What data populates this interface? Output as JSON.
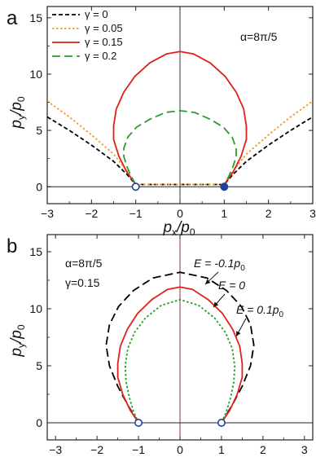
{
  "chart_data": [
    {
      "panel_label": "a",
      "type": "line",
      "xlabel": "p_x/p_0",
      "ylabel": "p_y/p_0",
      "xlim": [
        -3,
        3
      ],
      "ylim": [
        -1.5,
        16
      ],
      "xticks": [
        "-3",
        "-2",
        "-1",
        "0",
        "1",
        "2",
        "3"
      ],
      "yticks": [
        "0",
        "5",
        "10",
        "15"
      ],
      "grid": false,
      "legend_position": "top-left",
      "annotation": "α=8π/5",
      "series": [
        {
          "name": "γ = 0",
          "color": "#000000",
          "dash": "short-dash",
          "x": [
            -3.0,
            -2.5,
            -2.0,
            -1.5,
            -1.2,
            -1.0,
            1.0,
            1.2,
            1.5,
            2.0,
            2.5,
            3.0
          ],
          "y": [
            6.2,
            5.0,
            3.7,
            2.25,
            1.1,
            0.2,
            0.2,
            1.1,
            2.25,
            3.7,
            5.0,
            6.2
          ]
        },
        {
          "name": "γ = 0.05",
          "color": "#f39c2a",
          "dash": "dotted",
          "x": [
            -3.0,
            -2.5,
            -2.0,
            -1.5,
            -1.2,
            -1.0,
            1.0,
            1.2,
            1.5,
            2.0,
            2.5,
            3.0
          ],
          "y": [
            7.6,
            6.2,
            4.6,
            2.9,
            1.4,
            0.2,
            0.2,
            1.4,
            2.9,
            4.6,
            6.2,
            7.6
          ]
        },
        {
          "name": "γ = 0.15",
          "color": "#e0201b",
          "dash": "solid",
          "x": [
            -1.0,
            -1.2,
            -1.38,
            -1.5,
            -1.5,
            -1.44,
            -1.27,
            -1.02,
            -0.68,
            -0.3,
            0.0,
            0.3,
            0.68,
            1.02,
            1.27,
            1.44,
            1.5,
            1.5,
            1.38,
            1.2,
            1.0
          ],
          "y": [
            0.2,
            1.3,
            2.7,
            4.2,
            5.4,
            6.9,
            8.4,
            9.8,
            11.0,
            11.8,
            12.0,
            11.8,
            11.0,
            9.8,
            8.4,
            6.9,
            5.4,
            4.2,
            2.7,
            1.3,
            0.2
          ]
        },
        {
          "name": "γ = 0.2",
          "color": "#2d9c2d",
          "dash": "long-dash",
          "x": [
            -1.0,
            -1.1,
            -1.2,
            -1.27,
            -1.27,
            -1.18,
            -0.98,
            -0.68,
            -0.33,
            0.0,
            0.33,
            0.68,
            0.98,
            1.18,
            1.27,
            1.27,
            1.2,
            1.1,
            1.0
          ],
          "y": [
            0.2,
            0.9,
            1.8,
            2.7,
            3.4,
            4.4,
            5.3,
            6.0,
            6.6,
            6.75,
            6.6,
            6.0,
            5.3,
            4.4,
            3.4,
            2.7,
            1.8,
            0.9,
            0.2
          ]
        }
      ],
      "markers": [
        {
          "x": -1,
          "y": 0,
          "style": "open-circle",
          "color": "#1f3f9a"
        },
        {
          "x": 1,
          "y": 0,
          "style": "filled-circle",
          "color": "#1f3f9a"
        }
      ]
    },
    {
      "panel_label": "b",
      "type": "line",
      "xlabel": "",
      "ylabel": "p_y/p_0",
      "xlim": [
        -3.2,
        3.2
      ],
      "ylim": [
        -1.5,
        16.5
      ],
      "xticks": [
        "-3",
        "-2",
        "-1",
        "0",
        "1",
        "2",
        "3"
      ],
      "yticks": [
        "0",
        "5",
        "10",
        "15"
      ],
      "grid": false,
      "params_text": [
        "α=8π/5",
        "γ=0.15"
      ],
      "series": [
        {
          "label_text": "E = -0.1p",
          "label_sub": "0",
          "color": "#000000",
          "dash": "long-dash",
          "x": [
            -1.0,
            -1.25,
            -1.5,
            -1.7,
            -1.78,
            -1.7,
            -1.48,
            -1.12,
            -0.65,
            0.0,
            0.65,
            1.12,
            1.48,
            1.7,
            1.78,
            1.7,
            1.5,
            1.25,
            1.0
          ],
          "y": [
            0.0,
            1.5,
            3.2,
            5.0,
            6.8,
            8.6,
            10.2,
            11.6,
            12.7,
            13.2,
            12.7,
            11.6,
            10.2,
            8.6,
            6.8,
            5.0,
            3.2,
            1.5,
            0.0
          ]
        },
        {
          "label_text": "E = 0",
          "label_sub": "",
          "color": "#e0201b",
          "dash": "solid",
          "x": [
            -1.0,
            -1.2,
            -1.38,
            -1.5,
            -1.5,
            -1.44,
            -1.27,
            -1.02,
            -0.68,
            -0.3,
            0.0,
            0.3,
            0.68,
            1.02,
            1.27,
            1.44,
            1.5,
            1.5,
            1.38,
            1.2,
            1.0
          ],
          "y": [
            0.0,
            1.1,
            2.5,
            4.0,
            5.2,
            6.7,
            8.2,
            9.6,
            10.8,
            11.7,
            11.9,
            11.7,
            10.8,
            9.6,
            8.2,
            6.7,
            5.2,
            4.0,
            2.5,
            1.1,
            0.0
          ]
        },
        {
          "label_text": "E = 0.1p",
          "label_sub": "0",
          "color": "#1f9e1f",
          "dash": "dotted",
          "x": [
            -1.0,
            -1.12,
            -1.22,
            -1.3,
            -1.32,
            -1.26,
            -1.1,
            -0.83,
            -0.45,
            0.0,
            0.45,
            0.83,
            1.1,
            1.26,
            1.32,
            1.3,
            1.22,
            1.12,
            1.0
          ],
          "y": [
            0.0,
            1.0,
            2.2,
            3.6,
            5.0,
            6.5,
            7.9,
            9.2,
            10.3,
            10.8,
            10.3,
            9.2,
            7.9,
            6.5,
            5.0,
            3.6,
            2.2,
            1.0,
            0.0
          ]
        }
      ],
      "markers": [
        {
          "x": -1,
          "y": 0,
          "style": "open-circle",
          "color": "#1f3f9a"
        },
        {
          "x": 1,
          "y": 0,
          "style": "open-circle",
          "color": "#1f3f9a"
        }
      ]
    }
  ]
}
